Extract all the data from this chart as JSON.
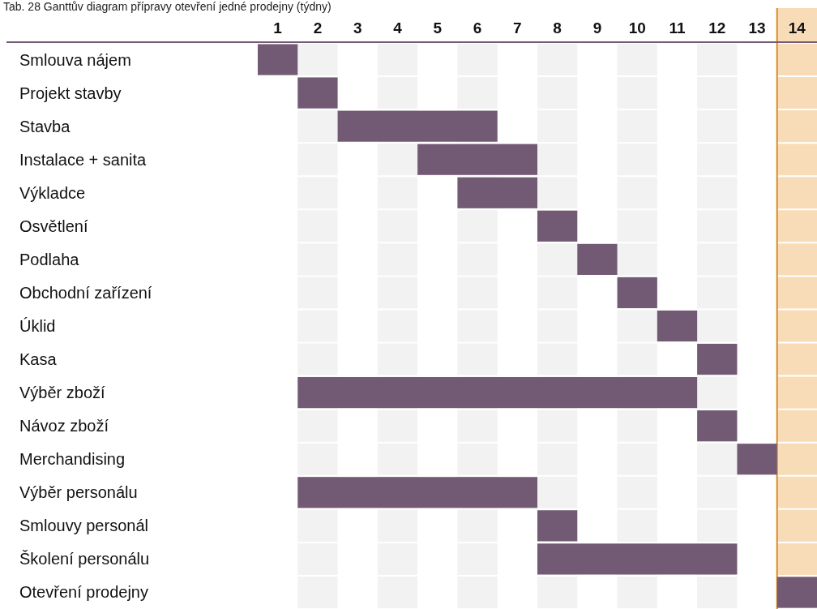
{
  "chart_data": {
    "type": "bar",
    "orientation": "horizontal",
    "title": "Tab. 28 Ganttův diagram přípravy otevření jedné prodejny (týdny)",
    "categories": [
      "Smlouva nájem",
      "Projekt stavby",
      "Stavba",
      "Instalace + sanita",
      "Výkladce",
      "Osvětlení",
      "Podlaha",
      "Obchodní zařízení",
      "Úklid",
      "Kasa",
      "Výběr zboží",
      "Návoz zboží",
      "Merchandising",
      "Výběr personálu",
      "Smlouvy personál",
      "Školení personálu",
      "Otevření prodejny"
    ],
    "base": [
      0,
      1,
      2,
      4,
      5,
      7,
      8,
      9,
      10,
      11,
      1,
      11,
      12,
      1,
      7,
      7,
      13
    ],
    "values": [
      1,
      1,
      4,
      3,
      2,
      1,
      1,
      1,
      1,
      1,
      10,
      1,
      1,
      6,
      1,
      5,
      1
    ],
    "color": "#725a74",
    "xlim": [
      0,
      14
    ],
    "xticks": [
      {
        "value": 0.5,
        "label": "1"
      },
      {
        "value": 1.5,
        "label": "2"
      },
      {
        "value": 2.5,
        "label": "3"
      },
      {
        "value": 3.5,
        "label": "4"
      },
      {
        "value": 4.5,
        "label": "5"
      },
      {
        "value": 5.5,
        "label": "6"
      },
      {
        "value": 6.5,
        "label": "7"
      },
      {
        "value": 7.5,
        "label": "8"
      },
      {
        "value": 8.5,
        "label": "9"
      },
      {
        "value": 9.5,
        "label": "10"
      },
      {
        "value": 10.5,
        "label": "11"
      },
      {
        "value": 11.5,
        "label": "12"
      },
      {
        "value": 12.5,
        "label": "13"
      },
      {
        "value": 13.5,
        "label": "14"
      }
    ],
    "bands": [
      {
        "axis": "x",
        "from": 1,
        "to": 2,
        "color": "#f2f2f2"
      },
      {
        "axis": "x",
        "from": 3,
        "to": 4,
        "color": "#f2f2f2"
      },
      {
        "axis": "x",
        "from": 5,
        "to": 6,
        "color": "#f2f2f2"
      },
      {
        "axis": "x",
        "from": 7,
        "to": 8,
        "color": "#f2f2f2"
      },
      {
        "axis": "x",
        "from": 9,
        "to": 10,
        "color": "#f2f2f2"
      },
      {
        "axis": "x",
        "from": 11,
        "to": 12,
        "color": "#f2f2f2"
      },
      {
        "axis": "x",
        "from": 13,
        "to": 14,
        "color": "#f8dcb8"
      }
    ],
    "ref_lines": [
      {
        "axis": "x",
        "value": 13,
        "color": "#e08a1e"
      }
    ]
  }
}
